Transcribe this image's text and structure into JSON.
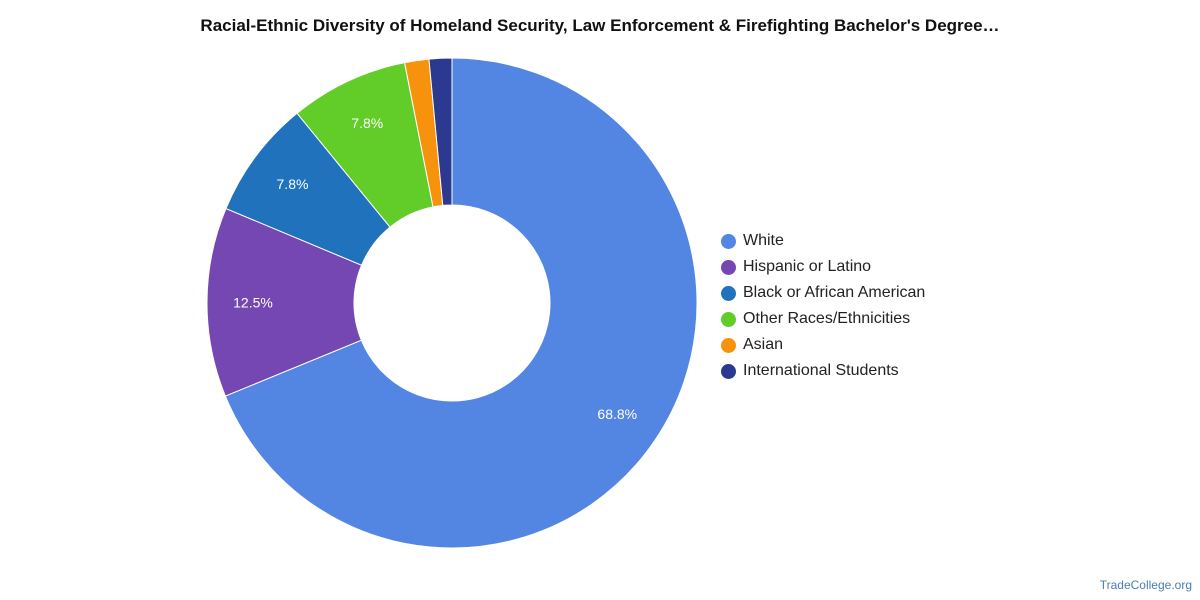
{
  "chart_data": {
    "type": "pie",
    "donut": true,
    "title": "Racial-Ethnic Diversity of Homeland Security, Law Enforcement & Firefighting Bachelor's Degree…",
    "slices": [
      {
        "name": "White",
        "value": 68.8,
        "label": "68.8%",
        "color": "#5385e3"
      },
      {
        "name": "Hispanic or Latino",
        "value": 12.5,
        "label": "12.5%",
        "color": "#7547b2"
      },
      {
        "name": "Black or African American",
        "value": 7.8,
        "label": "7.8%",
        "color": "#1f72bb"
      },
      {
        "name": "Other Races/Ethnicities",
        "value": 7.8,
        "label": "7.8%",
        "color": "#62cc28"
      },
      {
        "name": "Asian",
        "value": 1.6,
        "label": "",
        "color": "#f7920c"
      },
      {
        "name": "International Students",
        "value": 1.5,
        "label": "",
        "color": "#2b3990"
      }
    ],
    "legend_position": "right",
    "start": "top",
    "direction": "clockwise"
  },
  "watermark": "TradeCollege.org"
}
